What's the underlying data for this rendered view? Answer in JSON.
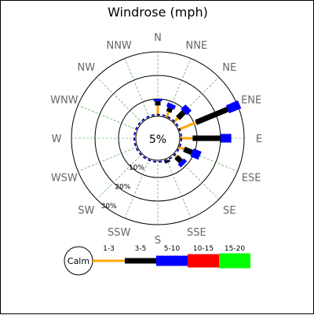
{
  "chart_data": {
    "type": "windrose",
    "title": "Windrose (mph)",
    "directions": [
      "N",
      "NNE",
      "NE",
      "ENE",
      "E",
      "ESE",
      "SE",
      "SSE",
      "S",
      "SSW",
      "SW",
      "WSW",
      "W",
      "WNW",
      "NW",
      "NNW"
    ],
    "radial_ticks": [
      "10%",
      "20%",
      "30%"
    ],
    "radial_values": [
      10,
      20,
      30
    ],
    "radial_max": 40,
    "calm_label": "5%",
    "grid": true,
    "legend": {
      "calm_label": "Calm",
      "bins": [
        {
          "label": "1-3",
          "color": "#ffa500"
        },
        {
          "label": "3-5",
          "color": "#000000"
        },
        {
          "label": "5-10",
          "color": "#0000ff"
        },
        {
          "label": "10-15",
          "color": "#ff0000"
        },
        {
          "label": "15-20",
          "color": "#00ff00"
        }
      ]
    },
    "series": [
      {
        "bin": "1-3",
        "values": [
          5,
          3,
          3,
          9,
          6,
          3,
          2,
          1,
          0,
          0,
          0,
          0,
          0,
          0,
          0,
          0
        ]
      },
      {
        "bin": "3-5",
        "values": [
          2,
          2,
          4,
          16,
          13,
          4,
          3,
          1,
          0,
          0,
          0,
          0,
          0,
          0,
          0,
          0
        ]
      },
      {
        "bin": "5-10",
        "values": [
          1,
          2,
          3,
          6,
          5,
          4,
          2,
          0,
          0,
          0,
          0,
          0,
          0,
          0,
          0,
          0
        ]
      }
    ]
  },
  "colors": {
    "grid_circle": "#000000",
    "grid_spoke": "#339933",
    "direction_label": "#666666",
    "background": "#ffffff"
  }
}
